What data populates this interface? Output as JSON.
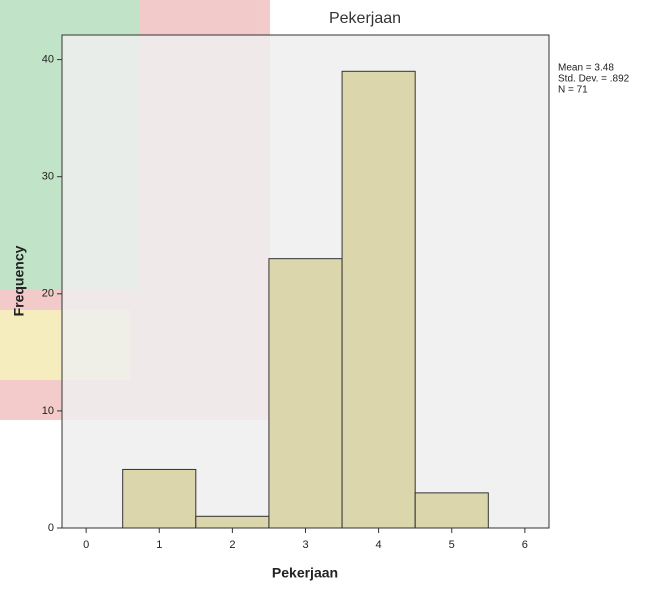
{
  "chart_data": {
    "type": "histogram",
    "title": "Pekerjaan",
    "x_label": "Pekerjaan",
    "y_label": "Frequency",
    "bins": [
      0.5,
      1.5,
      2.5,
      3.5,
      4.5,
      5.5
    ],
    "values": [
      5,
      1,
      23,
      39,
      3
    ],
    "color": "#d9d3a4",
    "xlim": [
      -0.33,
      6.33
    ],
    "xticks": [
      0,
      1,
      2,
      3,
      4,
      5,
      6
    ],
    "ylim": [
      0,
      42.1
    ],
    "yticks": [
      0,
      10,
      20,
      30,
      40
    ],
    "annotations": [
      "Mean = 3.48",
      "Std. Dev. = .892",
      "N = 71"
    ]
  }
}
